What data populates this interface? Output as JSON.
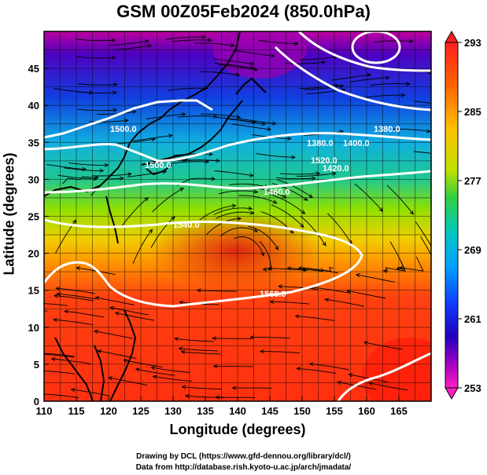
{
  "title": "GSM 00Z05Feb2024 (850.0hPa)",
  "x_axis": {
    "label": "Longitude (degrees)",
    "range": [
      110,
      170
    ],
    "ticks": [
      "110",
      "115",
      "120",
      "125",
      "130",
      "135",
      "140",
      "145",
      "150",
      "155",
      "160",
      "165"
    ]
  },
  "y_axis": {
    "label": "Latitude  (degrees)",
    "range": [
      0,
      50
    ],
    "ticks": [
      "0",
      "5",
      "10",
      "15",
      "20",
      "25",
      "30",
      "35",
      "40",
      "45"
    ]
  },
  "colorbar": {
    "min": 253,
    "max": 293,
    "labels": [
      "293",
      "285",
      "277",
      "269",
      "261",
      "253"
    ],
    "colors": [
      "#ff2020",
      "#ff8000",
      "#ffd000",
      "#80e000",
      "#20c060",
      "#00c0e0",
      "#2060ff",
      "#0000c0",
      "#8000c0",
      "#ff00c0"
    ]
  },
  "contours": {
    "labels": [
      "1380.0",
      "1400.0",
      "1380.0",
      "1420.0",
      "1460.0",
      "1500.0",
      "1520.0",
      "1540.0",
      "1560.0",
      "1500.0"
    ]
  },
  "credits": {
    "line1": "Drawing by DCL (https://www.gfd-dennou.org/library/dcl/)",
    "line2": "Data from http://database.rish.kyoto-u.ac.jp/arch/jmadata/"
  }
}
